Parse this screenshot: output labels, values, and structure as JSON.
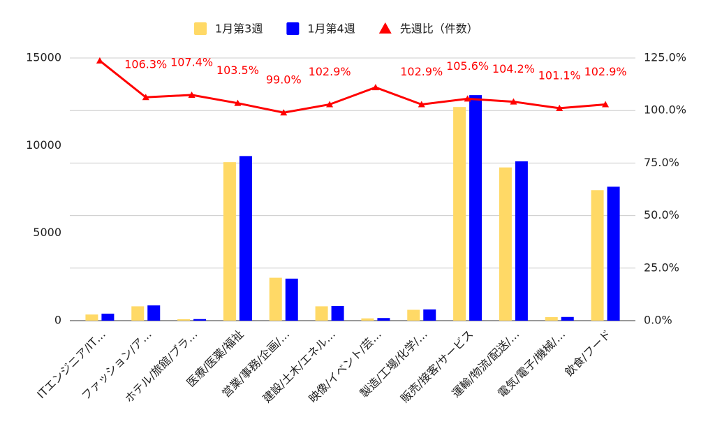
{
  "chart_data": {
    "type": "bar_line",
    "categories": [
      "ITエンジニア/IT…",
      "ファッション/ア…",
      "ホテル/旅館/ブラ…",
      "医療/医薬/福祉",
      "営業/事務/企画/…",
      "建設/土木/エネル…",
      "映像/イベント/芸…",
      "製造/工場/化学/…",
      "販売/接客/サービス",
      "運輸/物流/配送/…",
      "電気/電子/機械/…",
      "飲食/フード"
    ],
    "series": [
      {
        "name": "1月第3週",
        "color": "#ffd966",
        "values": [
          350,
          820,
          80,
          9050,
          2450,
          820,
          130,
          620,
          12200,
          8750,
          200,
          7450
        ]
      },
      {
        "name": "1月第4週",
        "color": "#0000ff",
        "values": [
          400,
          870,
          90,
          9400,
          2400,
          840,
          150,
          640,
          12880,
          9100,
          210,
          7650
        ]
      },
      {
        "name": "先週比（件数）",
        "color": "#ff0000",
        "axis": "y2",
        "values": [
          123.7,
          106.3,
          107.4,
          103.5,
          99.0,
          102.9,
          111.0,
          102.9,
          105.6,
          104.2,
          101.1,
          102.9
        ],
        "value_labels": [
          null,
          "106.3%",
          "107.4%",
          "103.5%",
          "99.0%",
          "102.9%",
          null,
          "102.9%",
          "105.6%",
          "104.2%",
          "101.1%",
          "102.9%"
        ]
      }
    ],
    "ylim": [
      0,
      15000
    ],
    "yticks": [
      0,
      5000,
      10000,
      15000
    ],
    "y2lim": [
      0,
      125
    ],
    "y2ticks": [
      {
        "value": 0,
        "label": "0.0%"
      },
      {
        "value": 25,
        "label": "25.0%"
      },
      {
        "value": 50,
        "label": "50.0%"
      },
      {
        "value": 75,
        "label": "75.0%"
      },
      {
        "value": 100,
        "label": "100.0%"
      },
      {
        "value": 125,
        "label": "125.0%"
      }
    ],
    "grid": true,
    "legend": "top"
  }
}
